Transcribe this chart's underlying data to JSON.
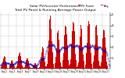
{
  "title1": "Solar PV/Inverter Performance",
  "title2": "Total PV Panel & Running Average Power Output",
  "title_fontsize": 3.2,
  "bg_color": "#ffffff",
  "bar_color": "#cc0000",
  "avg_color": "#0000bb",
  "grid_color": "#aaaaaa",
  "legend_pv_color": "#cc0000",
  "legend_avg_color": "#cc00cc",
  "ymin": 0,
  "ymax": 5.2,
  "ytick_vals": [
    1,
    2,
    3,
    4,
    5
  ],
  "num_bars": 200,
  "num_vgrid": 14,
  "seed": 7
}
